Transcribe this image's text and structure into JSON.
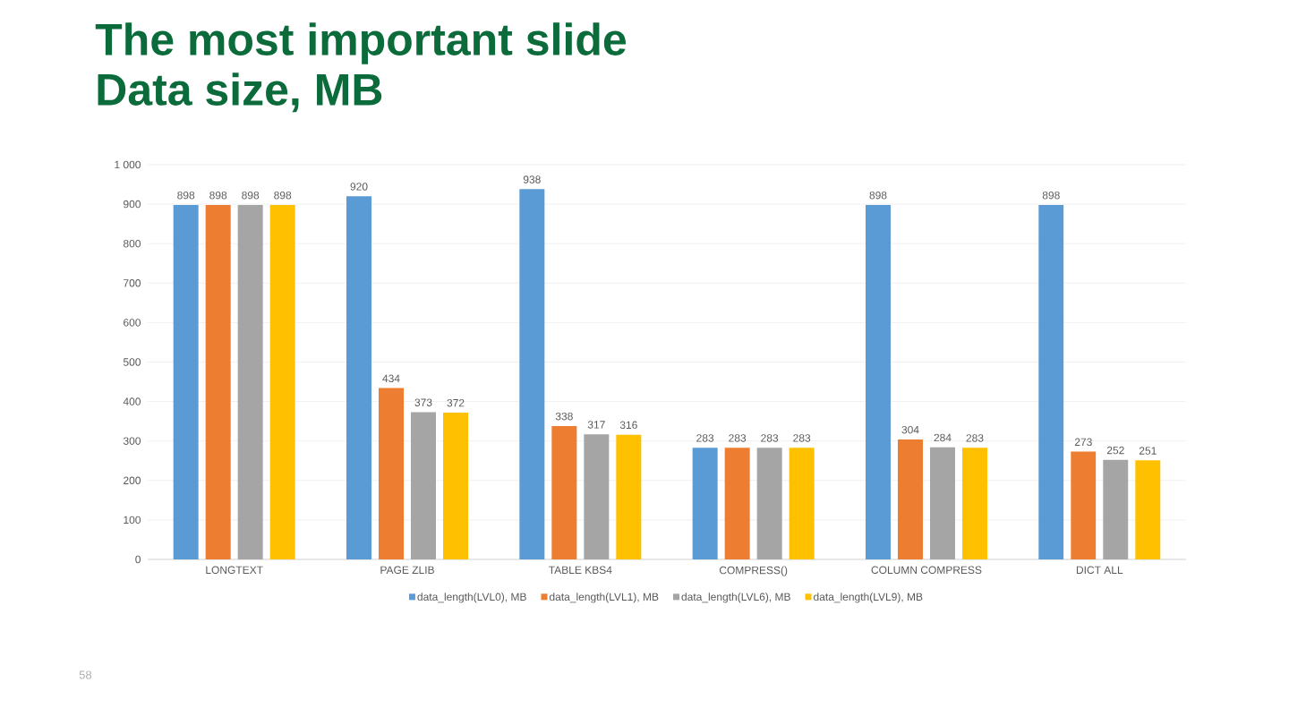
{
  "chart_data": {
    "type": "bar",
    "title": "The most important slide",
    "subtitle": "Data size, MB",
    "categories": [
      "LONGTEXT",
      "PAGE ZLIB",
      "TABLE KBS4",
      "COMPRESS()",
      "COLUMN COMPRESS",
      "DICT ALL"
    ],
    "series": [
      {
        "name": "data_length(LVL0), MB",
        "color": "#5b9bd5",
        "values": [
          898,
          920,
          938,
          283,
          898,
          898
        ]
      },
      {
        "name": "data_length(LVL1), MB",
        "color": "#ed7d31",
        "values": [
          898,
          434,
          338,
          283,
          304,
          273
        ]
      },
      {
        "name": "data_length(LVL6), MB",
        "color": "#a5a5a5",
        "values": [
          898,
          373,
          317,
          283,
          284,
          252
        ]
      },
      {
        "name": "data_length(LVL9), MB",
        "color": "#ffc000",
        "values": [
          898,
          372,
          316,
          283,
          283,
          251
        ]
      }
    ],
    "ylim": [
      0,
      1000
    ],
    "yticks": [
      0,
      100,
      200,
      300,
      400,
      500,
      600,
      700,
      800,
      900,
      {
        "value": 1000,
        "label": "1 000"
      }
    ],
    "grid": "y",
    "legend": "bottom",
    "data_labels": true,
    "annotations": [
      "58"
    ]
  }
}
